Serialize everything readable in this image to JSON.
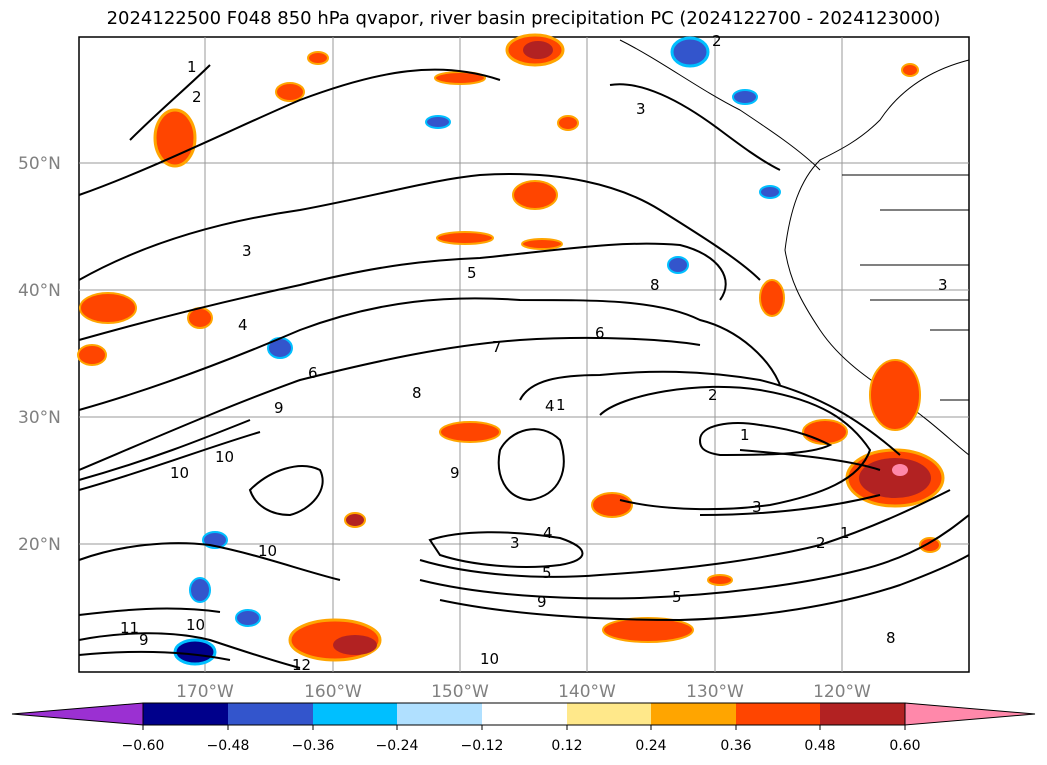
{
  "title": "2024122500 F048 850 hPa qvapor, river basin precipitation PC (2024122700 - 2024123000)",
  "map": {
    "lat_labels": [
      "50°N",
      "40°N",
      "30°N",
      "20°N"
    ],
    "lon_labels": [
      "170°W",
      "160°W",
      "150°W",
      "140°W",
      "130°W",
      "120°W"
    ],
    "grid": true,
    "contour_labels": [
      "1",
      "2",
      "2",
      "3",
      "3",
      "4",
      "5",
      "6",
      "6",
      "7",
      "8",
      "8",
      "9",
      "9",
      "10",
      "10",
      "1",
      "2",
      "1",
      "3",
      "3",
      "4",
      "5",
      "5",
      "9",
      "8",
      "10",
      "12",
      "10",
      "11",
      "9",
      "10",
      "4",
      "1",
      "2",
      "3"
    ]
  },
  "colorbar": {
    "tick_labels": [
      "−0.60",
      "−0.48",
      "−0.36",
      "−0.24",
      "−0.12",
      "0.12",
      "0.24",
      "0.36",
      "0.48",
      "0.60"
    ],
    "colors": [
      "#9b30d2",
      "#00008b",
      "#3355cc",
      "#00bfff",
      "#b0e0ff",
      "#ffffff",
      "#ffe88a",
      "#ffa500",
      "#ff4500",
      "#b22222",
      "#ff88aa"
    ]
  }
}
